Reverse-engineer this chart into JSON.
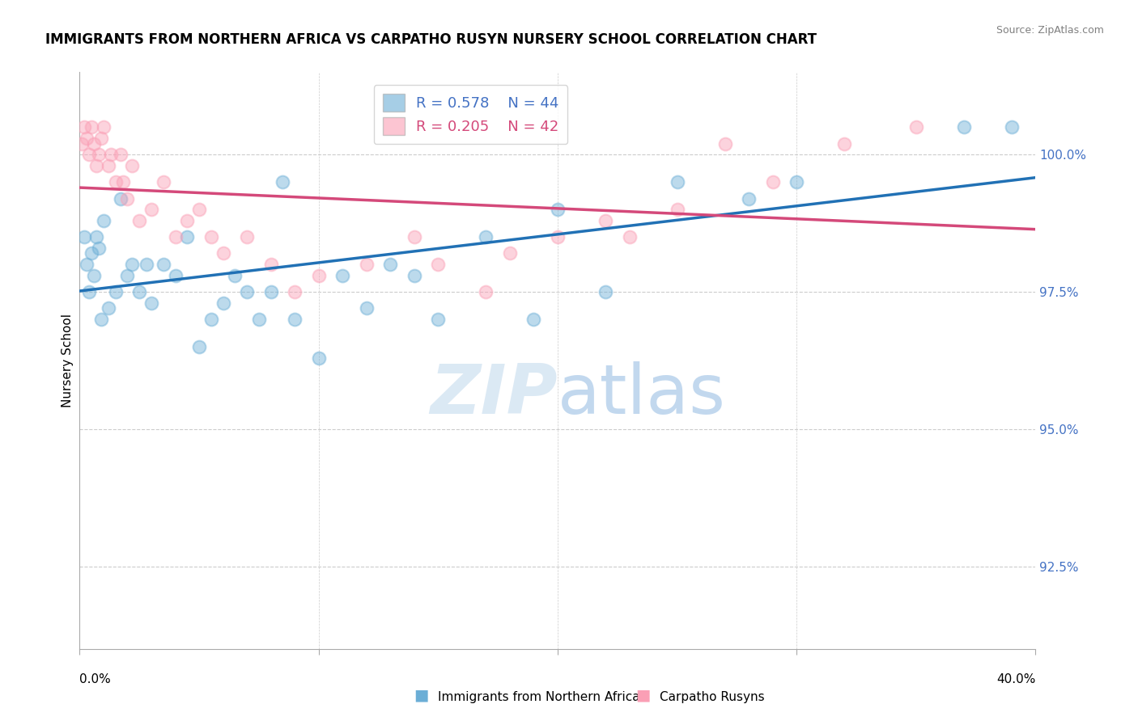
{
  "title": "IMMIGRANTS FROM NORTHERN AFRICA VS CARPATHO RUSYN NURSERY SCHOOL CORRELATION CHART",
  "source": "Source: ZipAtlas.com",
  "ylabel": "Nursery School",
  "yticklabels": [
    "92.5%",
    "95.0%",
    "97.5%",
    "100.0%"
  ],
  "yticks": [
    92.5,
    95.0,
    97.5,
    100.0
  ],
  "xlim": [
    0.0,
    40.0
  ],
  "ylim": [
    91.0,
    101.5
  ],
  "blue_R": 0.578,
  "blue_N": 44,
  "pink_R": 0.205,
  "pink_N": 42,
  "blue_color": "#6baed6",
  "pink_color": "#fa9fb5",
  "blue_line_color": "#2171b5",
  "pink_line_color": "#d4497a",
  "legend_label_blue": "Immigrants from Northern Africa",
  "legend_label_pink": "Carpatho Rusyns",
  "blue_scatter_x": [
    0.2,
    0.3,
    0.4,
    0.5,
    0.6,
    0.7,
    0.8,
    0.9,
    1.0,
    1.2,
    1.5,
    1.7,
    2.0,
    2.2,
    2.5,
    2.8,
    3.0,
    3.5,
    4.0,
    4.5,
    5.0,
    5.5,
    6.0,
    6.5,
    7.0,
    7.5,
    8.0,
    8.5,
    9.0,
    10.0,
    11.0,
    12.0,
    13.0,
    14.0,
    15.0,
    17.0,
    19.0,
    20.0,
    22.0,
    25.0,
    28.0,
    30.0,
    37.0,
    39.0
  ],
  "blue_scatter_y": [
    98.5,
    98.0,
    97.5,
    98.2,
    97.8,
    98.5,
    98.3,
    97.0,
    98.8,
    97.2,
    97.5,
    99.2,
    97.8,
    98.0,
    97.5,
    98.0,
    97.3,
    98.0,
    97.8,
    98.5,
    96.5,
    97.0,
    97.3,
    97.8,
    97.5,
    97.0,
    97.5,
    99.5,
    97.0,
    96.3,
    97.8,
    97.2,
    98.0,
    97.8,
    97.0,
    98.5,
    97.0,
    99.0,
    97.5,
    99.5,
    99.2,
    99.5,
    100.5,
    100.5
  ],
  "pink_scatter_x": [
    0.1,
    0.2,
    0.3,
    0.4,
    0.5,
    0.6,
    0.7,
    0.8,
    0.9,
    1.0,
    1.2,
    1.3,
    1.5,
    1.7,
    1.8,
    2.0,
    2.2,
    2.5,
    3.0,
    3.5,
    4.0,
    4.5,
    5.0,
    5.5,
    6.0,
    7.0,
    8.0,
    9.0,
    10.0,
    12.0,
    14.0,
    15.0,
    17.0,
    18.0,
    20.0,
    22.0,
    23.0,
    25.0,
    27.0,
    29.0,
    32.0,
    35.0
  ],
  "pink_scatter_y": [
    100.2,
    100.5,
    100.3,
    100.0,
    100.5,
    100.2,
    99.8,
    100.0,
    100.3,
    100.5,
    99.8,
    100.0,
    99.5,
    100.0,
    99.5,
    99.2,
    99.8,
    98.8,
    99.0,
    99.5,
    98.5,
    98.8,
    99.0,
    98.5,
    98.2,
    98.5,
    98.0,
    97.5,
    97.8,
    98.0,
    98.5,
    98.0,
    97.5,
    98.2,
    98.5,
    98.8,
    98.5,
    99.0,
    100.2,
    99.5,
    100.2,
    100.5
  ],
  "watermark_zip": "ZIP",
  "watermark_atlas": "atlas",
  "background_color": "#ffffff",
  "grid_color": "#cccccc",
  "legend_text_blue": "R = 0.578    N = 44",
  "legend_text_pink": "R = 0.205    N = 42"
}
